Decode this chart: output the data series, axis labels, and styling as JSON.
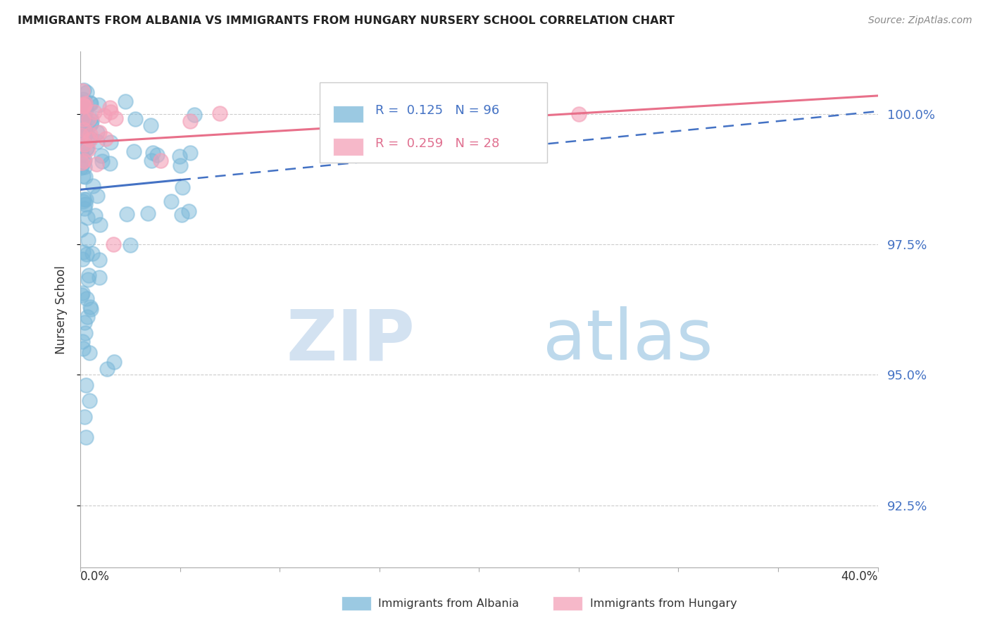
{
  "title": "IMMIGRANTS FROM ALBANIA VS IMMIGRANTS FROM HUNGARY NURSERY SCHOOL CORRELATION CHART",
  "source": "Source: ZipAtlas.com",
  "ylabel": "Nursery School",
  "yticks": [
    92.5,
    95.0,
    97.5,
    100.0
  ],
  "ytick_labels": [
    "92.5%",
    "95.0%",
    "97.5%",
    "100.0%"
  ],
  "xmin": 0.0,
  "xmax": 40.0,
  "ymin": 91.3,
  "ymax": 101.2,
  "albania_color": "#7ab8d9",
  "hungary_color": "#f4a0b8",
  "albania_R": 0.125,
  "albania_N": 96,
  "hungary_R": 0.259,
  "hungary_N": 28,
  "legend_label_1": "Immigrants from Albania",
  "legend_label_2": "Immigrants from Hungary",
  "alb_trend_x0": 0.0,
  "alb_trend_y0": 98.55,
  "alb_trend_x1": 40.0,
  "alb_trend_y1": 100.05,
  "alb_solid_end": 5.0,
  "hun_trend_x0": 0.0,
  "hun_trend_y0": 99.45,
  "hun_trend_x1": 40.0,
  "hun_trend_y1": 100.35
}
